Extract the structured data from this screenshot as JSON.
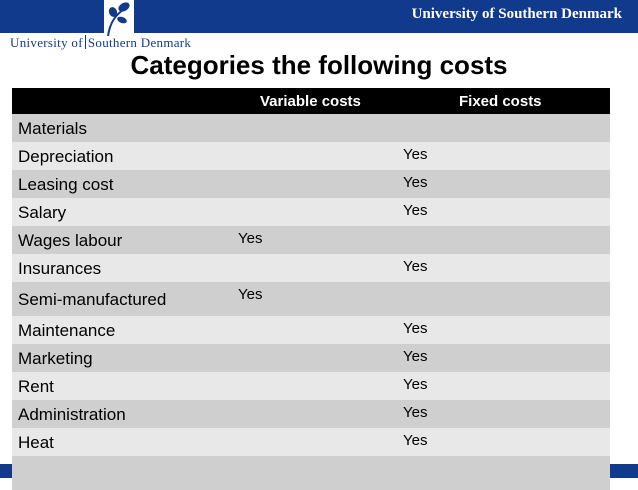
{
  "header": {
    "university_right": "University of Southern Denmark",
    "logo_text_a": "University of",
    "logo_text_b": "Southern Denmark"
  },
  "title": "Categories the following costs",
  "table": {
    "columns": [
      "",
      "Variable costs",
      "Fixed costs"
    ],
    "rows": [
      {
        "name": "Materials",
        "variable": "",
        "fixed": ""
      },
      {
        "name": "Depreciation",
        "variable": "",
        "fixed": "Yes"
      },
      {
        "name": "Leasing cost",
        "variable": "",
        "fixed": "Yes"
      },
      {
        "name": "Salary",
        "variable": "",
        "fixed": "Yes"
      },
      {
        "name": "Wages labour",
        "variable": "Yes",
        "fixed": ""
      },
      {
        "name": "Insurances",
        "variable": "",
        "fixed": "Yes"
      },
      {
        "name": "Semi-manufactured",
        "variable": "Yes",
        "fixed": ""
      },
      {
        "name": "Maintenance",
        "variable": "",
        "fixed": "Yes"
      },
      {
        "name": "Marketing",
        "variable": "",
        "fixed": "Yes"
      },
      {
        "name": "Rent",
        "variable": "",
        "fixed": "Yes"
      },
      {
        "name": "Administration",
        "variable": "",
        "fixed": "Yes"
      },
      {
        "name": "Heat",
        "variable": "",
        "fixed": "Yes"
      },
      {
        "name": "",
        "variable": "",
        "fixed": ""
      }
    ]
  },
  "colors": {
    "brand": "#123a8c",
    "row_dark": "#cfcfcf",
    "row_light": "#e8e8e8"
  }
}
